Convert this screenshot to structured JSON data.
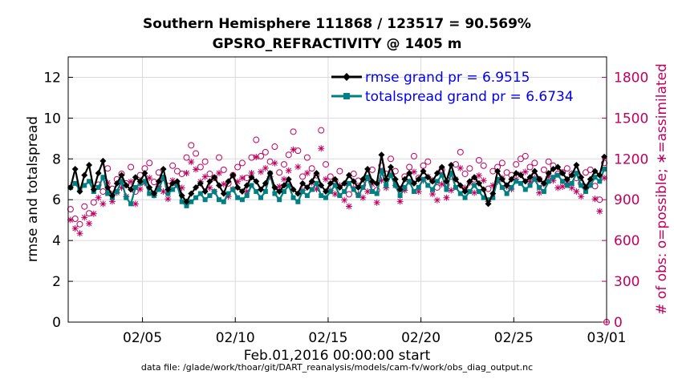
{
  "title": "Southern Hemisphere 111868 / 123517 = 90.569%",
  "subtitle": "GPSRO_REFRACTIVITY @ 1405 m",
  "footer": "data file: /glade/work/thoar/git/DART_reanalysis/models/cam-fv/work/obs_diag_output.nc",
  "colors": {
    "rmse": "#000000",
    "spread": "#008080",
    "obs": "#c0005f",
    "legend_text": "#0000ee"
  },
  "chart_data": {
    "type": "line",
    "xlabel": "Feb.01,2016 00:00:00 start",
    "ylabel": "rmse and totalspread",
    "y2label": "# of obs: o=possible; ∗=assimilated",
    "xlim": [
      0,
      29
    ],
    "ylim": [
      0,
      13
    ],
    "y2lim": [
      0,
      1950
    ],
    "x_ticks": [
      4,
      9,
      14,
      19,
      24,
      29
    ],
    "x_tick_labels": [
      "02/05",
      "02/10",
      "02/15",
      "02/20",
      "02/25",
      "03/01"
    ],
    "y_ticks": [
      0,
      2,
      4,
      6,
      8,
      10,
      12
    ],
    "y2_ticks": [
      0,
      300,
      600,
      900,
      1200,
      1500,
      1800
    ],
    "legend": [
      "rmse grand pr = 6.9515",
      "totalspread grand pr = 6.6734"
    ],
    "legend_position": "top-right",
    "grid": true,
    "x": [
      0.125,
      0.375,
      0.625,
      0.875,
      1.125,
      1.375,
      1.625,
      1.875,
      2.125,
      2.375,
      2.625,
      2.875,
      3.125,
      3.375,
      3.625,
      3.875,
      4.125,
      4.375,
      4.625,
      4.875,
      5.125,
      5.375,
      5.625,
      5.875,
      6.125,
      6.375,
      6.625,
      6.875,
      7.125,
      7.375,
      7.625,
      7.875,
      8.125,
      8.375,
      8.625,
      8.875,
      9.125,
      9.375,
      9.625,
      9.875,
      10.125,
      10.375,
      10.625,
      10.875,
      11.125,
      11.375,
      11.625,
      11.875,
      12.125,
      12.375,
      12.625,
      12.875,
      13.125,
      13.375,
      13.625,
      13.875,
      14.125,
      14.375,
      14.625,
      14.875,
      15.125,
      15.375,
      15.625,
      15.875,
      16.125,
      16.375,
      16.625,
      16.875,
      17.125,
      17.375,
      17.625,
      17.875,
      18.125,
      18.375,
      18.625,
      18.875,
      19.125,
      19.375,
      19.625,
      19.875,
      20.125,
      20.375,
      20.625,
      20.875,
      21.125,
      21.375,
      21.625,
      21.875,
      22.125,
      22.375,
      22.625,
      22.875,
      23.125,
      23.375,
      23.625,
      23.875,
      24.125,
      24.375,
      24.625,
      24.875,
      25.125,
      25.375,
      25.625,
      25.875,
      26.125,
      26.375,
      26.625,
      26.875,
      27.125,
      27.375,
      27.625,
      27.875,
      28.125,
      28.375,
      28.625,
      28.875
    ],
    "series": [
      {
        "name": "rmse grand pr = 6.9515",
        "marker": "diamond",
        "values": [
          6.6,
          7.5,
          6.4,
          7.2,
          7.7,
          6.5,
          7.3,
          7.9,
          6.6,
          6.2,
          6.8,
          7.2,
          6.7,
          6.5,
          7.1,
          6.9,
          7.3,
          6.6,
          6.3,
          6.9,
          7.5,
          6.5,
          6.8,
          6.9,
          6.2,
          5.9,
          6.3,
          6.6,
          6.8,
          6.4,
          6.9,
          7.1,
          6.7,
          6.3,
          6.9,
          7.2,
          6.6,
          6.4,
          6.7,
          7.1,
          6.9,
          6.5,
          6.8,
          7.3,
          6.6,
          6.4,
          6.7,
          7.0,
          6.5,
          6.3,
          6.8,
          6.6,
          6.9,
          7.3,
          6.7,
          6.4,
          6.8,
          7.0,
          6.6,
          6.8,
          7.2,
          6.9,
          6.6,
          7.0,
          7.5,
          6.9,
          6.8,
          8.2,
          7.0,
          7.6,
          7.0,
          6.5,
          7.0,
          7.3,
          6.8,
          7.0,
          7.4,
          7.1,
          6.9,
          7.3,
          7.6,
          6.9,
          7.7,
          7.0,
          6.7,
          6.4,
          6.9,
          7.1,
          6.8,
          6.5,
          5.8,
          6.3,
          7.4,
          7.0,
          6.7,
          7.0,
          7.3,
          7.2,
          6.9,
          7.1,
          7.4,
          7.0,
          6.8,
          7.3,
          7.5,
          7.6,
          7.3,
          7.0,
          7.2,
          7.7,
          7.1,
          6.6,
          7.0,
          7.4,
          7.2,
          8.1
        ]
      },
      {
        "name": "totalspread grand pr = 6.6734",
        "marker": "square",
        "values": [
          6.6,
          6.8,
          6.5,
          6.7,
          6.9,
          6.4,
          6.6,
          7.1,
          6.3,
          6.1,
          6.4,
          6.9,
          6.1,
          5.8,
          6.6,
          6.8,
          6.9,
          6.3,
          6.2,
          6.5,
          7.1,
          6.3,
          6.5,
          6.7,
          5.9,
          5.7,
          5.9,
          6.1,
          6.3,
          6.0,
          6.2,
          6.4,
          6.0,
          5.9,
          6.3,
          6.5,
          6.1,
          6.0,
          6.2,
          6.7,
          6.4,
          6.1,
          6.4,
          7.3,
          6.3,
          6.0,
          6.4,
          6.7,
          6.1,
          5.9,
          6.4,
          6.2,
          6.5,
          6.8,
          6.2,
          6.1,
          6.4,
          6.7,
          6.2,
          6.4,
          6.8,
          6.5,
          6.2,
          6.6,
          7.1,
          6.4,
          6.3,
          7.4,
          6.7,
          7.2,
          6.7,
          6.2,
          6.6,
          6.9,
          6.4,
          6.6,
          7.0,
          6.7,
          6.5,
          6.9,
          7.2,
          6.5,
          7.3,
          6.6,
          6.3,
          6.1,
          6.4,
          6.7,
          6.4,
          6.1,
          6.0,
          6.1,
          7.0,
          6.6,
          6.3,
          6.6,
          6.9,
          6.8,
          6.5,
          6.7,
          7.0,
          6.6,
          6.4,
          6.9,
          7.1,
          7.2,
          6.9,
          6.7,
          6.8,
          7.3,
          6.7,
          6.4,
          6.7,
          7.1,
          6.9,
          7.5
        ]
      }
    ],
    "obs_possible": [
      830,
      760,
      720,
      850,
      800,
      880,
      1010,
      960,
      1130,
      980,
      1050,
      1090,
      1020,
      1140,
      960,
      1080,
      1130,
      1170,
      1030,
      1100,
      1060,
      1000,
      1150,
      1110,
      1090,
      1210,
      1300,
      1240,
      1140,
      1180,
      1090,
      1060,
      1210,
      1120,
      1020,
      1080,
      1140,
      1170,
      1060,
      1210,
      1340,
      1220,
      1250,
      1180,
      1290,
      1100,
      1160,
      1230,
      1400,
      1260,
      1070,
      1210,
      1130,
      1080,
      1410,
      1160,
      1070,
      1040,
      1110,
      990,
      940,
      1090,
      1040,
      1010,
      1060,
      1120,
      970,
      1150,
      1090,
      1200,
      1110,
      980,
      1070,
      1140,
      1220,
      1060,
      1150,
      1180,
      1040,
      990,
      1120,
      1010,
      1070,
      1160,
      1250,
      1090,
      1130,
      1050,
      1190,
      1150,
      980,
      1110,
      1140,
      1170,
      1100,
      1080,
      1160,
      1200,
      1220,
      1140,
      1170,
      1050,
      1120,
      1180,
      1150,
      1090,
      1100,
      1130,
      1090,
      1060,
      1020,
      1100,
      1120,
      1000,
      900,
      1170
    ]
  }
}
